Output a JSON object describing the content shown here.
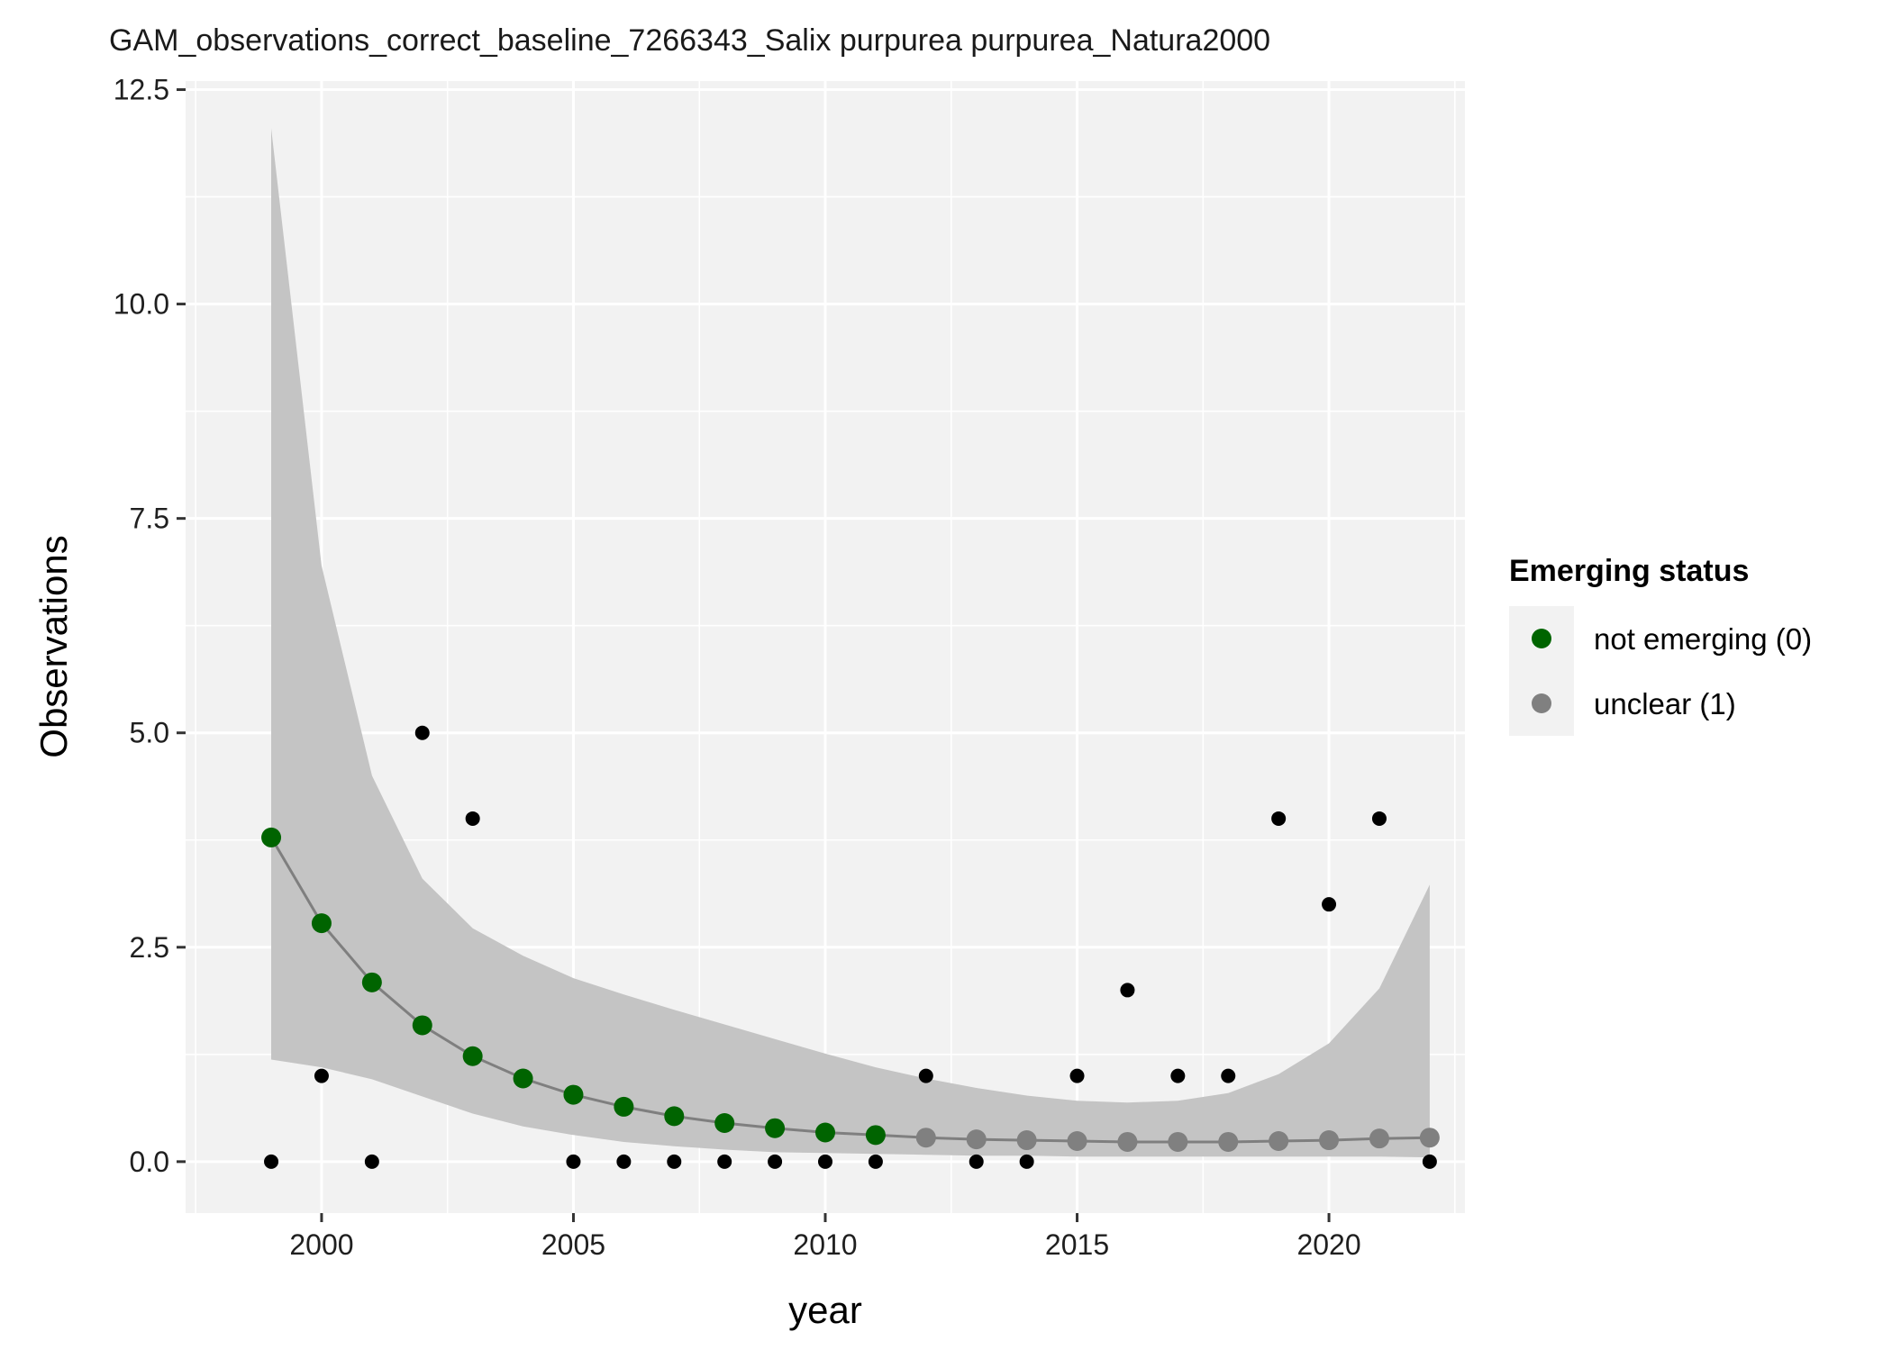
{
  "chart_data": {
    "type": "scatter",
    "title": "GAM_observations_correct_baseline_7266343_Salix purpurea purpurea_Natura2000",
    "xlabel": "year",
    "ylabel": "Observations",
    "xlim": [
      1997.3,
      2022.7
    ],
    "ylim": [
      -0.6,
      12.6
    ],
    "x_ticks": [
      2000,
      2005,
      2010,
      2015,
      2020
    ],
    "y_ticks": [
      0.0,
      2.5,
      5.0,
      7.5,
      10.0,
      12.5
    ],
    "y_tick_labels": [
      "0.0",
      "2.5",
      "5.0",
      "7.5",
      "10.0",
      "12.5"
    ],
    "grid": true,
    "legend": {
      "title": "Emerging status",
      "position": "right",
      "items": [
        {
          "label": "not emerging (0)",
          "color": "#006400"
        },
        {
          "label": "unclear (1)",
          "color": "#808080"
        }
      ]
    },
    "observed": {
      "color": "#000000",
      "points": [
        [
          1999,
          0
        ],
        [
          2000,
          1
        ],
        [
          2001,
          0
        ],
        [
          2002,
          5
        ],
        [
          2003,
          4
        ],
        [
          2005,
          0
        ],
        [
          2006,
          0
        ],
        [
          2007,
          0
        ],
        [
          2008,
          0
        ],
        [
          2009,
          0
        ],
        [
          2010,
          0
        ],
        [
          2011,
          0
        ],
        [
          2012,
          1
        ],
        [
          2013,
          0
        ],
        [
          2014,
          0
        ],
        [
          2015,
          1
        ],
        [
          2016,
          2
        ],
        [
          2017,
          1
        ],
        [
          2018,
          1
        ],
        [
          2019,
          4
        ],
        [
          2020,
          3
        ],
        [
          2021,
          4
        ],
        [
          2022,
          0
        ]
      ]
    },
    "fit": {
      "line_color": "#7f7f7f",
      "band_color": "#c4c4c4",
      "x": [
        1999,
        2000,
        2001,
        2002,
        2003,
        2004,
        2005,
        2006,
        2007,
        2008,
        2009,
        2010,
        2011,
        2012,
        2013,
        2014,
        2015,
        2016,
        2017,
        2018,
        2019,
        2020,
        2021,
        2022
      ],
      "y": [
        3.78,
        2.78,
        2.09,
        1.59,
        1.23,
        0.97,
        0.78,
        0.64,
        0.53,
        0.45,
        0.39,
        0.34,
        0.31,
        0.28,
        0.26,
        0.25,
        0.24,
        0.23,
        0.23,
        0.23,
        0.24,
        0.25,
        0.27,
        0.28
      ],
      "lower": [
        1.19,
        1.1,
        0.96,
        0.76,
        0.56,
        0.41,
        0.31,
        0.23,
        0.18,
        0.14,
        0.11,
        0.1,
        0.09,
        0.08,
        0.07,
        0.07,
        0.06,
        0.06,
        0.06,
        0.06,
        0.06,
        0.06,
        0.06,
        0.05
      ],
      "upper": [
        12.05,
        6.95,
        4.5,
        3.3,
        2.72,
        2.4,
        2.14,
        1.95,
        1.77,
        1.6,
        1.43,
        1.26,
        1.1,
        0.97,
        0.86,
        0.77,
        0.71,
        0.69,
        0.71,
        0.8,
        1.02,
        1.38,
        2.02,
        3.23
      ],
      "status": [
        0,
        0,
        0,
        0,
        0,
        0,
        0,
        0,
        0,
        0,
        0,
        0,
        0,
        1,
        1,
        1,
        1,
        1,
        1,
        1,
        1,
        1,
        1,
        1
      ]
    }
  }
}
